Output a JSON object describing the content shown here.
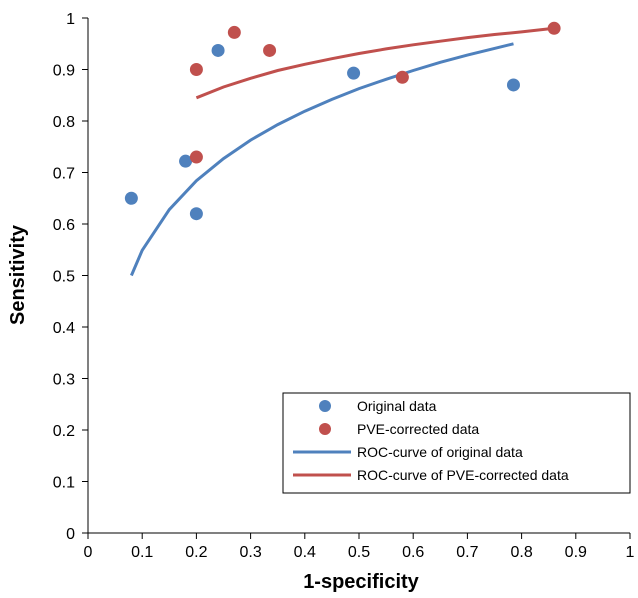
{
  "chart_data": {
    "type": "scatter",
    "title": "",
    "xlabel": "1-specificity",
    "ylabel": "Sensitivity",
    "xlim": [
      0,
      1
    ],
    "ylim": [
      0,
      1
    ],
    "xticks": [
      "0",
      "0.1",
      "0.2",
      "0.3",
      "0.4",
      "0.5",
      "0.6",
      "0.7",
      "0.8",
      "0.9",
      "1"
    ],
    "yticks": [
      "0",
      "0.1",
      "0.2",
      "0.3",
      "0.4",
      "0.5",
      "0.6",
      "0.7",
      "0.8",
      "0.9",
      "1"
    ],
    "grid": false,
    "legend_position": "bottom-right",
    "series": [
      {
        "name": "Original data",
        "kind": "points",
        "color": "#4F81BD",
        "x": [
          0.08,
          0.18,
          0.2,
          0.24,
          0.49,
          0.785
        ],
        "y": [
          0.65,
          0.722,
          0.62,
          0.937,
          0.893,
          0.87
        ]
      },
      {
        "name": "PVE-corrected data",
        "kind": "points",
        "color": "#C0504D",
        "x": [
          0.2,
          0.2,
          0.27,
          0.335,
          0.58,
          0.86
        ],
        "y": [
          0.9,
          0.73,
          0.972,
          0.937,
          0.885,
          0.98
        ]
      },
      {
        "name": "ROC-curve of original data",
        "kind": "curve",
        "color": "#4F81BD",
        "x": [
          0.08,
          0.1,
          0.15,
          0.2,
          0.25,
          0.3,
          0.35,
          0.4,
          0.45,
          0.5,
          0.55,
          0.6,
          0.65,
          0.7,
          0.75,
          0.785
        ],
        "y": [
          0.5,
          0.549,
          0.628,
          0.684,
          0.727,
          0.763,
          0.793,
          0.819,
          0.842,
          0.863,
          0.881,
          0.898,
          0.914,
          0.928,
          0.941,
          0.95
        ]
      },
      {
        "name": "ROC-curve of PVE-corrected data",
        "kind": "curve",
        "color": "#C0504D",
        "x": [
          0.2,
          0.25,
          0.3,
          0.35,
          0.4,
          0.45,
          0.5,
          0.55,
          0.6,
          0.65,
          0.7,
          0.75,
          0.8,
          0.86
        ],
        "y": [
          0.845,
          0.866,
          0.883,
          0.898,
          0.91,
          0.921,
          0.931,
          0.94,
          0.948,
          0.955,
          0.962,
          0.968,
          0.973,
          0.98
        ]
      }
    ]
  }
}
